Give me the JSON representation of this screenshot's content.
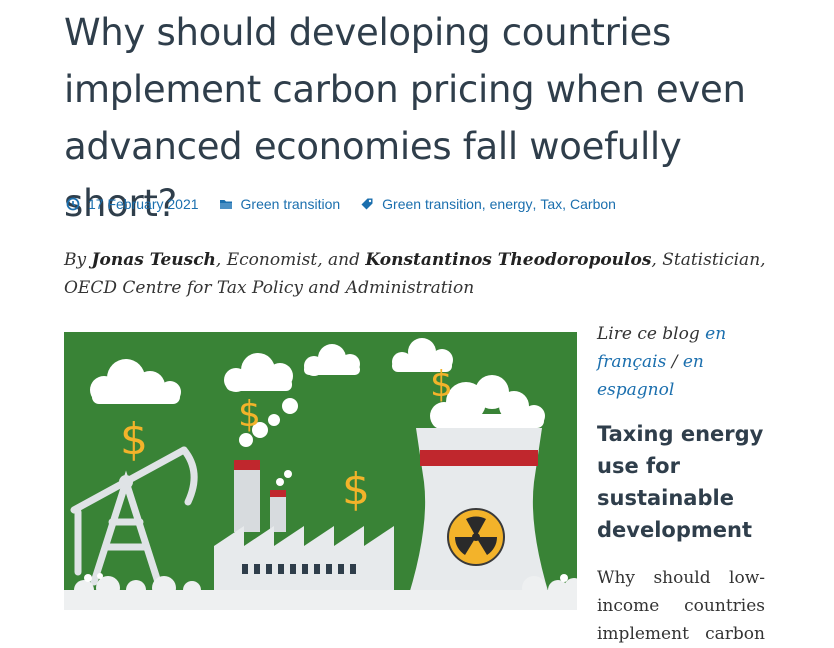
{
  "article": {
    "title": "Why should developing countries implement carbon pricing when even advanced economies fall woefully short?",
    "date": "17 February 2021",
    "category": "Green transition",
    "tags": [
      "Green transition",
      "energy",
      "Tax",
      "Carbon"
    ],
    "byline": {
      "prefix": "By ",
      "author1": "Jonas Teusch",
      "role1": ", Economist, and ",
      "author2": "Konstantinos Theodoropoulos",
      "role2": ", Statistician, OECD Centre for Tax Policy and Administration"
    }
  },
  "icons": {
    "date": "clock-icon",
    "category": "folder-icon",
    "tags": "tag-icon"
  },
  "colors": {
    "link": "#1b6fae",
    "heading": "#2f3e4b",
    "figure_bg": "#3f8a3a",
    "dollar": "#f3b32a",
    "stripe": "#c0272d"
  },
  "figure": {
    "dollar_sign": "$"
  },
  "aside": {
    "lire_prefix": "Lire ce blog ",
    "french_link": "en français",
    "slash": " / ",
    "spanish_link": "en espagnol",
    "title": "Taxing energy use for sustainable development",
    "text": "Why should low-income countries implement carbon"
  }
}
